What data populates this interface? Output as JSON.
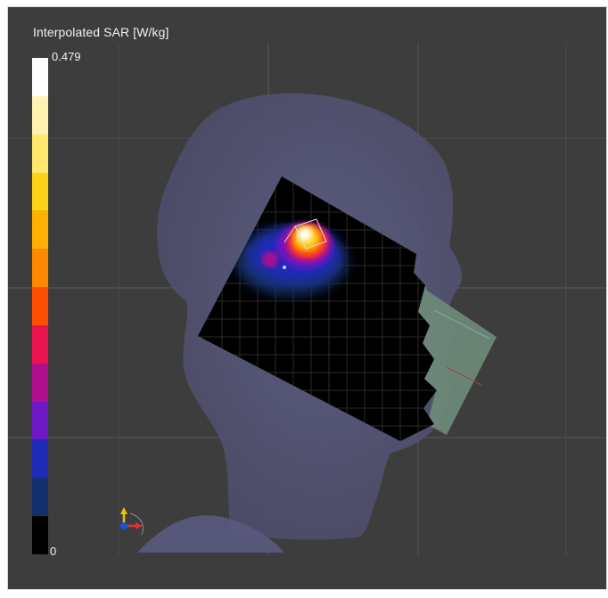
{
  "viewport": {
    "legend": {
      "title": "Interpolated SAR [W/kg]",
      "max_label": "0.479",
      "min_label": "0",
      "colors": [
        "#ffffff",
        "#fff3b0",
        "#ffe86a",
        "#ffd21a",
        "#ffb000",
        "#ff8a00",
        "#ff4f00",
        "#e8134f",
        "#b0108f",
        "#6c18c4",
        "#1e2bb8",
        "#12306e",
        "#000000"
      ]
    },
    "colors": {
      "background": "#3d3d3d",
      "head": "#58587e",
      "sar_region": "#000000",
      "phone": "#6e8c7a"
    },
    "axes_gizmo": {
      "x_color": "#e03030",
      "y_color": "#f0c000",
      "z_color": "#2050e0"
    }
  }
}
